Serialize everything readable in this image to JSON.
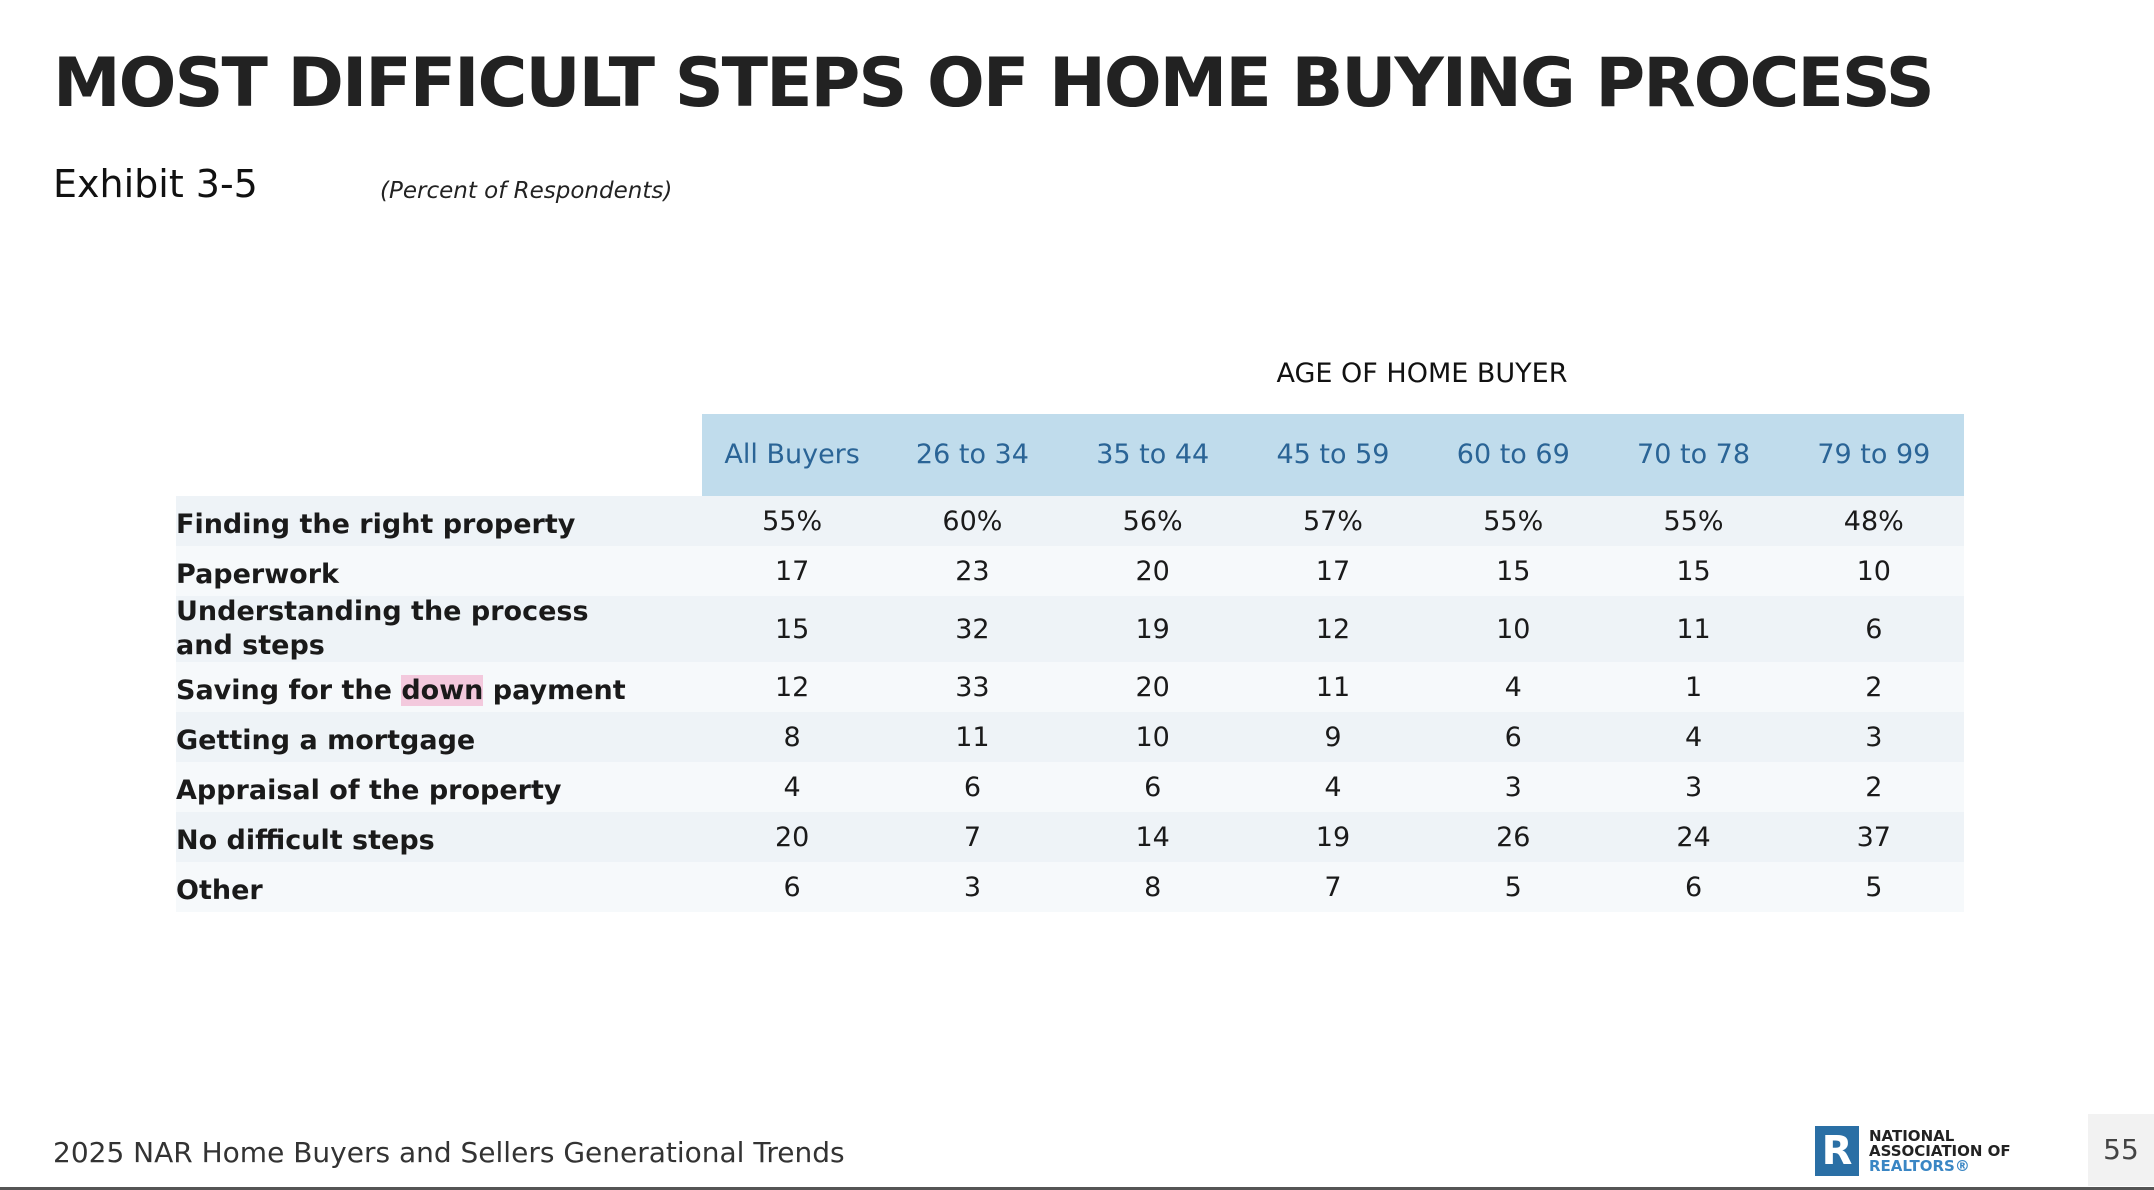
{
  "title": "MOST DIFFICULT STEPS OF HOME BUYING PROCESS",
  "exhibit": "Exhibit 3-5",
  "subtitle": "(Percent of Respondents)",
  "group_header": "AGE OF HOME BUYER",
  "columns": [
    "All Buyers",
    "26 to 34",
    "35 to 44",
    "45 to 59",
    "60 to 69",
    "70 to 78",
    "79 to 99"
  ],
  "rows": [
    {
      "label": "Finding the right property",
      "values": [
        "55%",
        "60%",
        "56%",
        "57%",
        "55%",
        "55%",
        "48%"
      ]
    },
    {
      "label": "Paperwork",
      "values": [
        "17",
        "23",
        "20",
        "17",
        "15",
        "15",
        "10"
      ]
    },
    {
      "label": "Understanding the process and steps",
      "values": [
        "15",
        "32",
        "19",
        "12",
        "10",
        "11",
        "6"
      ]
    },
    {
      "label_parts": [
        "Saving for the ",
        "down",
        " payment"
      ],
      "values": [
        "12",
        "33",
        "20",
        "11",
        "4",
        "1",
        "2"
      ]
    },
    {
      "label": "Getting a mortgage",
      "values": [
        "8",
        "11",
        "10",
        "9",
        "6",
        "4",
        "3"
      ]
    },
    {
      "label": "Appraisal of the property",
      "values": [
        "4",
        "6",
        "6",
        "4",
        "3",
        "3",
        "2"
      ]
    },
    {
      "label": "No difficult steps",
      "values": [
        "20",
        "7",
        "14",
        "19",
        "26",
        "24",
        "37"
      ]
    },
    {
      "label": "Other",
      "values": [
        "6",
        "3",
        "8",
        "7",
        "5",
        "6",
        "5"
      ]
    }
  ],
  "footer": "2025 NAR Home Buyers and Sellers Generational Trends",
  "logo": {
    "mark": "R",
    "line1": "NATIONAL",
    "line2": "ASSOCIATION OF",
    "line3": "REALTORS®"
  },
  "page_number": "55",
  "colors": {
    "header_bg": "#c0dcec",
    "header_text": "#2a6496",
    "highlight": "#f3c9dd"
  }
}
